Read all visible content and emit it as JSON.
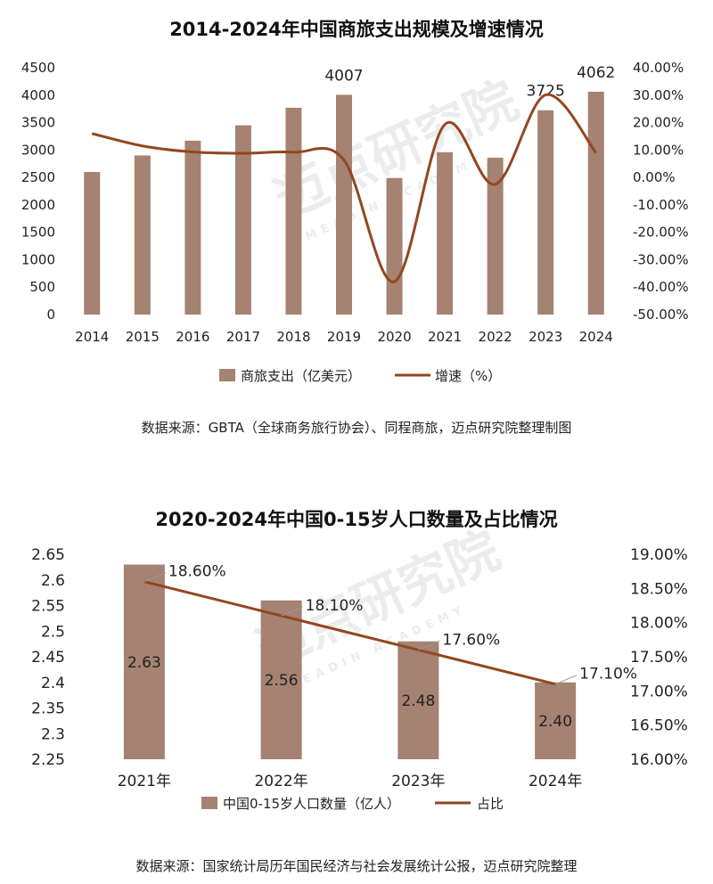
{
  "colors": {
    "bar": "#a58271",
    "line": "#93471f",
    "text": "#222222"
  },
  "watermark": {
    "text": "迈点研究院",
    "sub": "MEADIN ACADEMY"
  },
  "chart_data": [
    {
      "type": "bar",
      "title": "2014-2024年中国商旅支出规模及增速情况",
      "categories": [
        "2014",
        "2015",
        "2016",
        "2017",
        "2018",
        "2019",
        "2020",
        "2021",
        "2022",
        "2023",
        "2024"
      ],
      "series": [
        {
          "name": "商旅支出（亿美元）",
          "type": "bar",
          "axis": "left",
          "values": [
            2600,
            2900,
            3170,
            3450,
            3770,
            4007,
            2490,
            2960,
            2860,
            3725,
            4062
          ]
        },
        {
          "name": "增速（%）",
          "type": "line",
          "axis": "right",
          "values": [
            16.0,
            11.5,
            9.3,
            8.8,
            9.2,
            6.3,
            -38.0,
            19.3,
            -2.5,
            30.1,
            9.0
          ]
        }
      ],
      "bar_labels": {
        "2019": "4007",
        "2023": "3725",
        "2024": "4062"
      },
      "y_left": {
        "min": 0,
        "max": 4500,
        "ticks": [
          "0",
          "500",
          "1000",
          "1500",
          "2000",
          "2500",
          "3000",
          "3500",
          "4000",
          "4500"
        ]
      },
      "y_right": {
        "min": -50,
        "max": 40,
        "ticks": [
          "-50.00%",
          "-40.00%",
          "-30.00%",
          "-20.00%",
          "-10.00%",
          "0.00%",
          "10.00%",
          "20.00%",
          "30.00%",
          "40.00%"
        ]
      },
      "legend": [
        "商旅支出（亿美元）",
        "增速（%）"
      ],
      "legend_position": "bottom",
      "source": "数据来源：GBTA（全球商务旅行协会）、同程商旅，迈点研究院整理制图"
    },
    {
      "type": "bar",
      "title": "2020-2024年中国0-15岁人口数量及占比情况",
      "categories": [
        "2021年",
        "2022年",
        "2023年",
        "2024年"
      ],
      "series": [
        {
          "name": "中国0-15岁人口数量（亿人）",
          "type": "bar",
          "axis": "left",
          "values": [
            2.63,
            2.56,
            2.48,
            2.4
          ],
          "labels": [
            "2.63",
            "2.56",
            "2.48",
            "2.40"
          ]
        },
        {
          "name": "占比",
          "type": "line",
          "axis": "right",
          "values": [
            18.6,
            18.1,
            17.6,
            17.1
          ],
          "labels": [
            "18.60%",
            "18.10%",
            "17.60%",
            "17.10%"
          ]
        }
      ],
      "y_left": {
        "min": 2.25,
        "max": 2.65,
        "ticks": [
          "2.25",
          "2.3",
          "2.35",
          "2.4",
          "2.45",
          "2.5",
          "2.55",
          "2.6",
          "2.65"
        ]
      },
      "y_right": {
        "min": 16.0,
        "max": 19.0,
        "ticks": [
          "16.00%",
          "16.50%",
          "17.00%",
          "17.50%",
          "18.00%",
          "18.50%",
          "19.00%"
        ]
      },
      "legend": [
        "中国0-15岁人口数量（亿人）",
        "占比"
      ],
      "legend_position": "bottom",
      "source": "数据来源：国家统计局历年国民经济与社会发展统计公报，迈点研究院整理"
    }
  ]
}
